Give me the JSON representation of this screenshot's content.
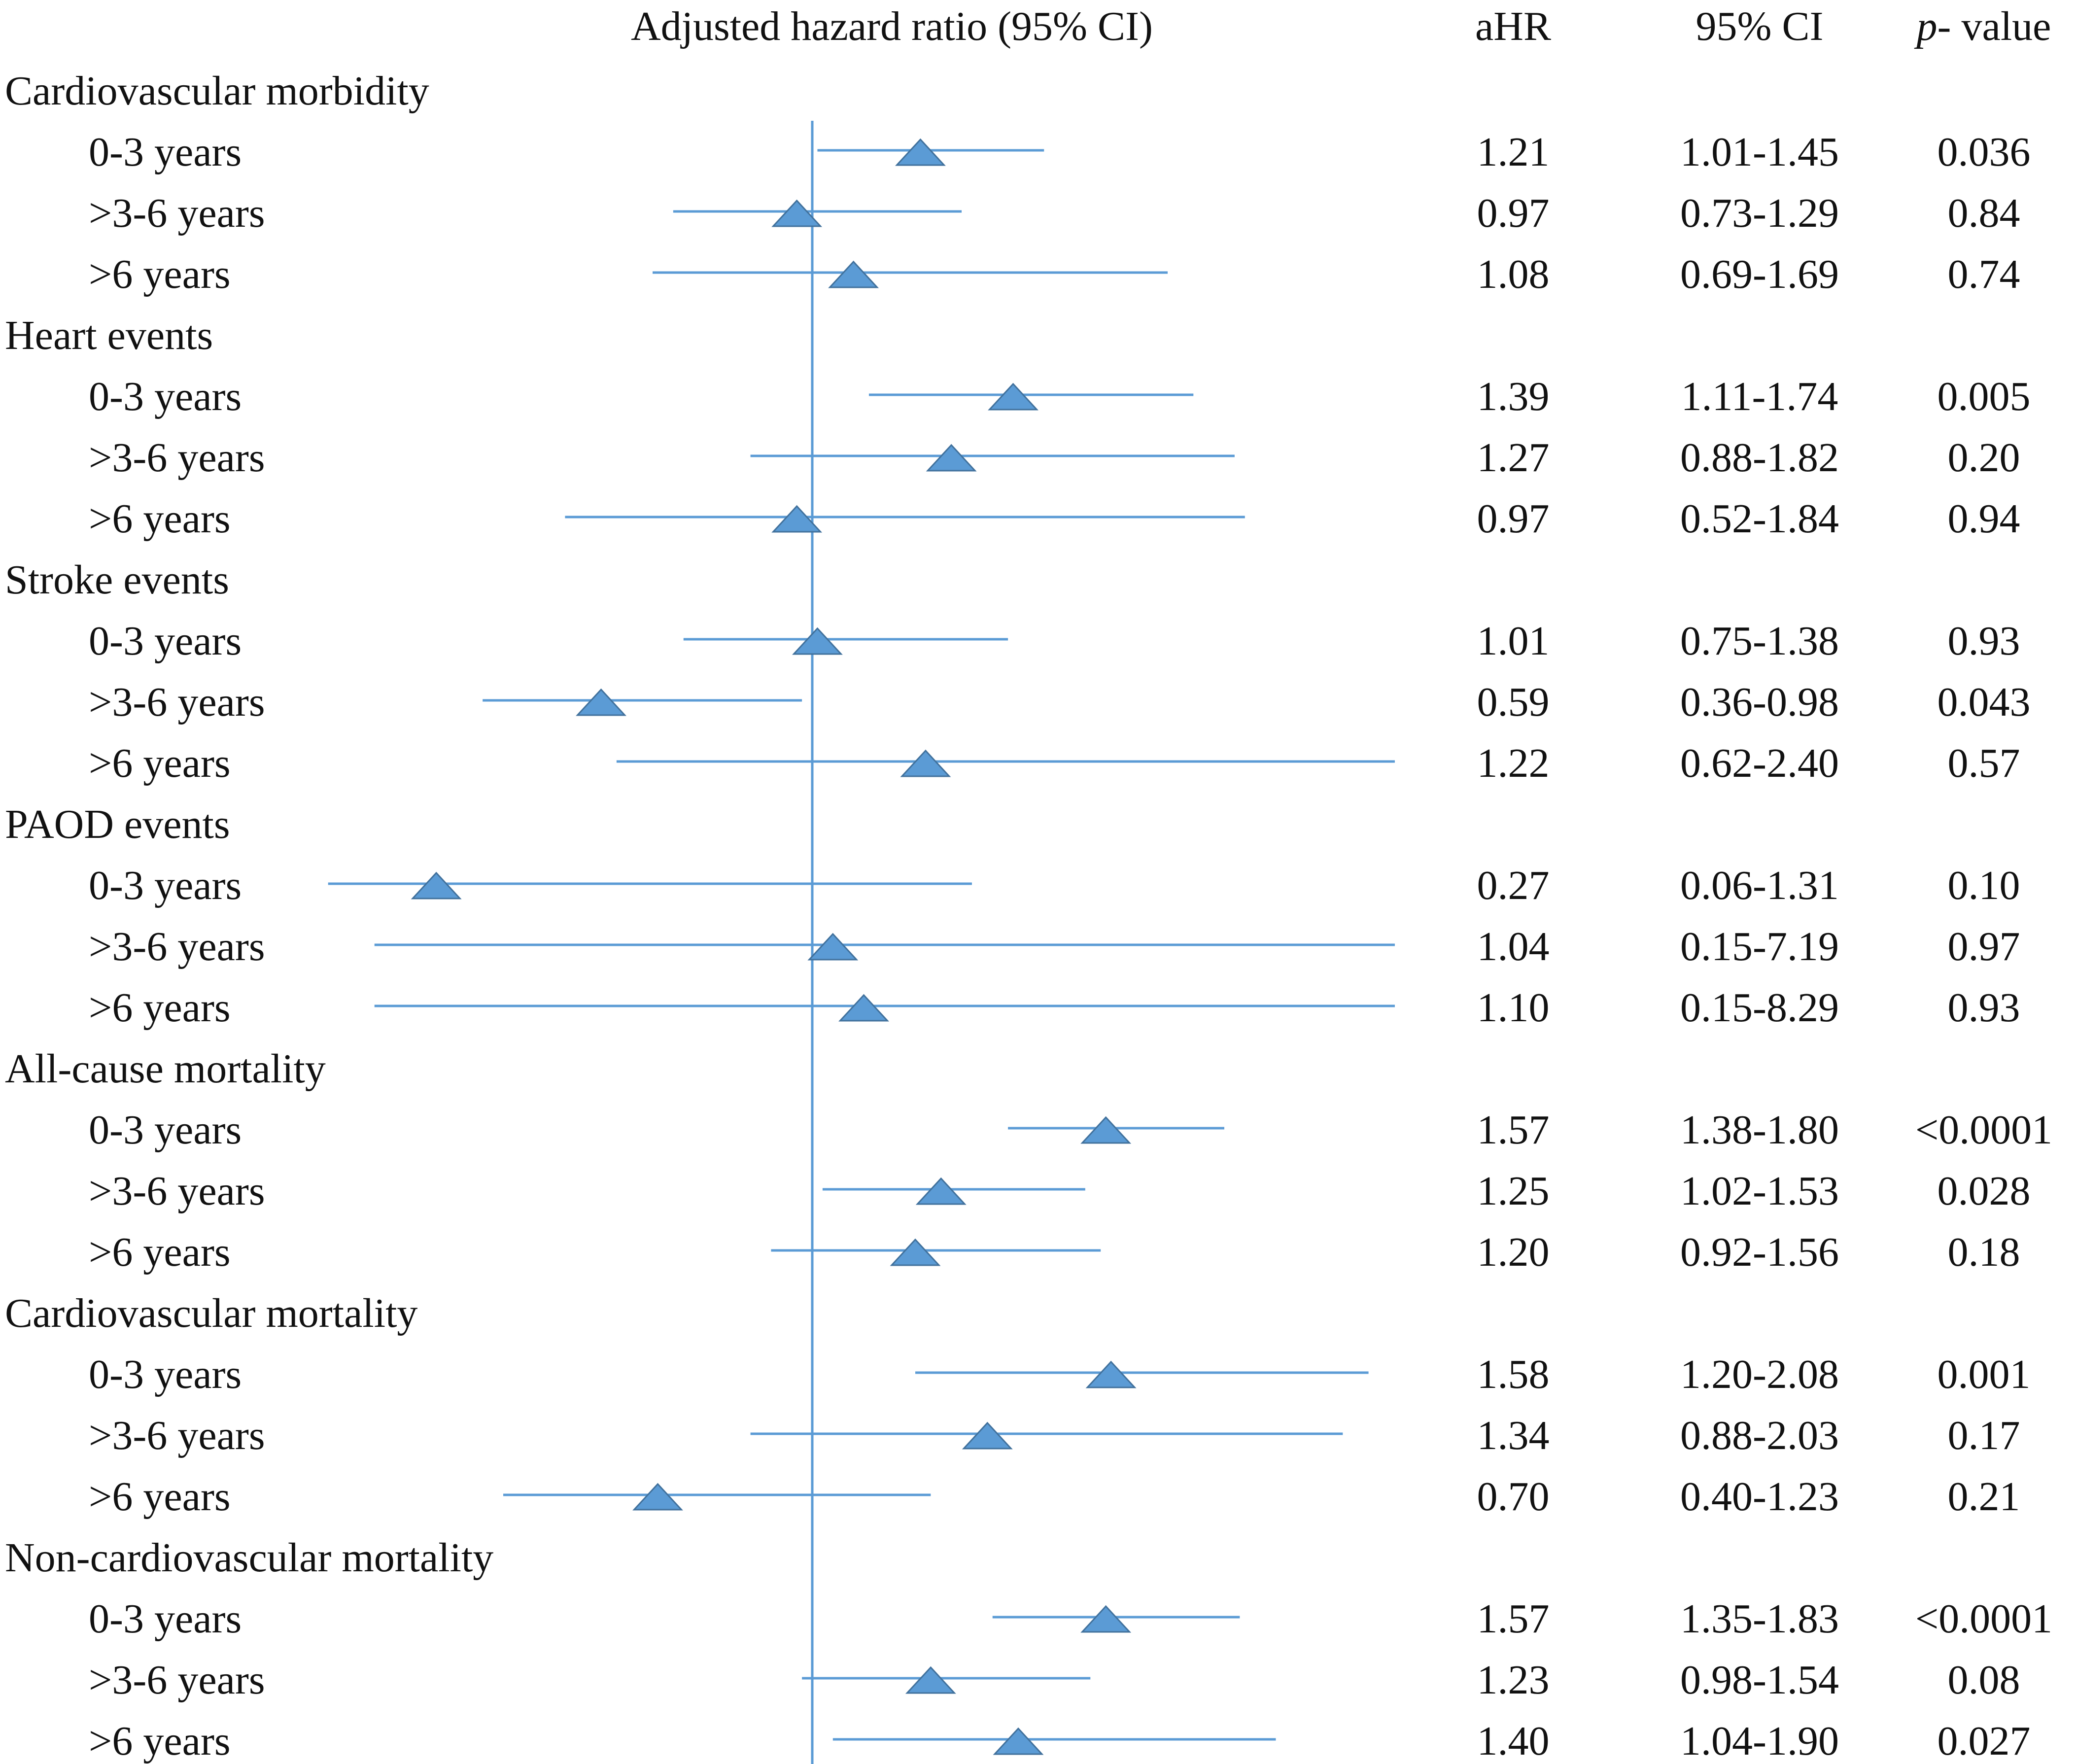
{
  "chart_data": {
    "type": "forest",
    "title": "Adjusted hazard ratio (95% CI)",
    "reference_line": 1.0,
    "xlim": [
      0.0,
      3.0
    ],
    "columns": {
      "ahr": "aHR",
      "ci": "95% CI",
      "p_prefix": "p-",
      "p_suffix": " value"
    },
    "colors": {
      "marker": "#5b9bd5",
      "line": "#5b9bd5",
      "marker_stroke": "#41719c"
    },
    "groups": [
      {
        "name": "Cardiovascular morbidity",
        "rows": [
          {
            "label": "0-3 years",
            "ahr": 1.21,
            "lo": 1.01,
            "hi": 1.45,
            "ahr_text": "1.21",
            "ci_text": "1.01-1.45",
            "p_text": "0.036"
          },
          {
            "label": ">3-6 years",
            "ahr": 0.97,
            "lo": 0.73,
            "hi": 1.29,
            "ahr_text": "0.97",
            "ci_text": "0.73-1.29",
            "p_text": "0.84"
          },
          {
            "label": ">6 years",
            "ahr": 1.08,
            "lo": 0.69,
            "hi": 1.69,
            "ahr_text": "1.08",
            "ci_text": "0.69-1.69",
            "p_text": "0.74"
          }
        ]
      },
      {
        "name": "Heart events",
        "rows": [
          {
            "label": "0-3 years",
            "ahr": 1.39,
            "lo": 1.11,
            "hi": 1.74,
            "ahr_text": "1.39",
            "ci_text": "1.11-1.74",
            "p_text": "0.005"
          },
          {
            "label": ">3-6 years",
            "ahr": 1.27,
            "lo": 0.88,
            "hi": 1.82,
            "ahr_text": "1.27",
            "ci_text": "0.88-1.82",
            "p_text": "0.20"
          },
          {
            "label": ">6 years",
            "ahr": 0.97,
            "lo": 0.52,
            "hi": 1.84,
            "ahr_text": "0.97",
            "ci_text": "0.52-1.84",
            "p_text": "0.94"
          }
        ]
      },
      {
        "name": "Stroke events",
        "rows": [
          {
            "label": "0-3 years",
            "ahr": 1.01,
            "lo": 0.75,
            "hi": 1.38,
            "ahr_text": "1.01",
            "ci_text": "0.75-1.38",
            "p_text": "0.93"
          },
          {
            "label": ">3-6 years",
            "ahr": 0.59,
            "lo": 0.36,
            "hi": 0.98,
            "ahr_text": "0.59",
            "ci_text": "0.36-0.98",
            "p_text": "0.043"
          },
          {
            "label": ">6 years",
            "ahr": 1.22,
            "lo": 0.62,
            "hi": 2.4,
            "ahr_text": "1.22",
            "ci_text": "0.62-2.40",
            "p_text": "0.57"
          }
        ]
      },
      {
        "name": "PAOD events",
        "rows": [
          {
            "label": "0-3 years",
            "ahr": 0.27,
            "lo": 0.06,
            "hi": 1.31,
            "ahr_text": "0.27",
            "ci_text": "0.06-1.31",
            "p_text": "0.10"
          },
          {
            "label": ">3-6 years",
            "ahr": 1.04,
            "lo": 0.15,
            "hi": 7.19,
            "ahr_text": "1.04",
            "ci_text": "0.15-7.19",
            "p_text": "0.97",
            "clip_hi": true
          },
          {
            "label": ">6 years",
            "ahr": 1.1,
            "lo": 0.15,
            "hi": 8.29,
            "ahr_text": "1.10",
            "ci_text": "0.15-8.29",
            "p_text": "0.93",
            "clip_hi": true
          }
        ]
      },
      {
        "name": "All-cause mortality",
        "rows": [
          {
            "label": "0-3 years",
            "ahr": 1.57,
            "lo": 1.38,
            "hi": 1.8,
            "ahr_text": "1.57",
            "ci_text": "1.38-1.80",
            "p_text": "<0.0001"
          },
          {
            "label": ">3-6 years",
            "ahr": 1.25,
            "lo": 1.02,
            "hi": 1.53,
            "ahr_text": "1.25",
            "ci_text": "1.02-1.53",
            "p_text": "0.028"
          },
          {
            "label": ">6 years",
            "ahr": 1.2,
            "lo": 0.92,
            "hi": 1.56,
            "ahr_text": "1.20",
            "ci_text": "0.92-1.56",
            "p_text": "0.18"
          }
        ]
      },
      {
        "name": "Cardiovascular mortality",
        "rows": [
          {
            "label": "0-3 years",
            "ahr": 1.58,
            "lo": 1.2,
            "hi": 2.08,
            "ahr_text": "1.58",
            "ci_text": "1.20-2.08",
            "p_text": "0.001"
          },
          {
            "label": ">3-6 years",
            "ahr": 1.34,
            "lo": 0.88,
            "hi": 2.03,
            "ahr_text": "1.34",
            "ci_text": "0.88-2.03",
            "p_text": "0.17"
          },
          {
            "label": ">6 years",
            "ahr": 0.7,
            "lo": 0.4,
            "hi": 1.23,
            "ahr_text": "0.70",
            "ci_text": "0.40-1.23",
            "p_text": "0.21"
          }
        ]
      },
      {
        "name": "Non-cardiovascular mortality",
        "rows": [
          {
            "label": "0-3 years",
            "ahr": 1.57,
            "lo": 1.35,
            "hi": 1.83,
            "ahr_text": "1.57",
            "ci_text": "1.35-1.83",
            "p_text": "<0.0001"
          },
          {
            "label": ">3-6 years",
            "ahr": 1.23,
            "lo": 0.98,
            "hi": 1.54,
            "ahr_text": "1.23",
            "ci_text": "0.98-1.54",
            "p_text": "0.08"
          },
          {
            "label": ">6 years",
            "ahr": 1.4,
            "lo": 1.04,
            "hi": 1.9,
            "ahr_text": "1.40",
            "ci_text": "1.04-1.90",
            "p_text": "0.027"
          }
        ]
      }
    ]
  }
}
